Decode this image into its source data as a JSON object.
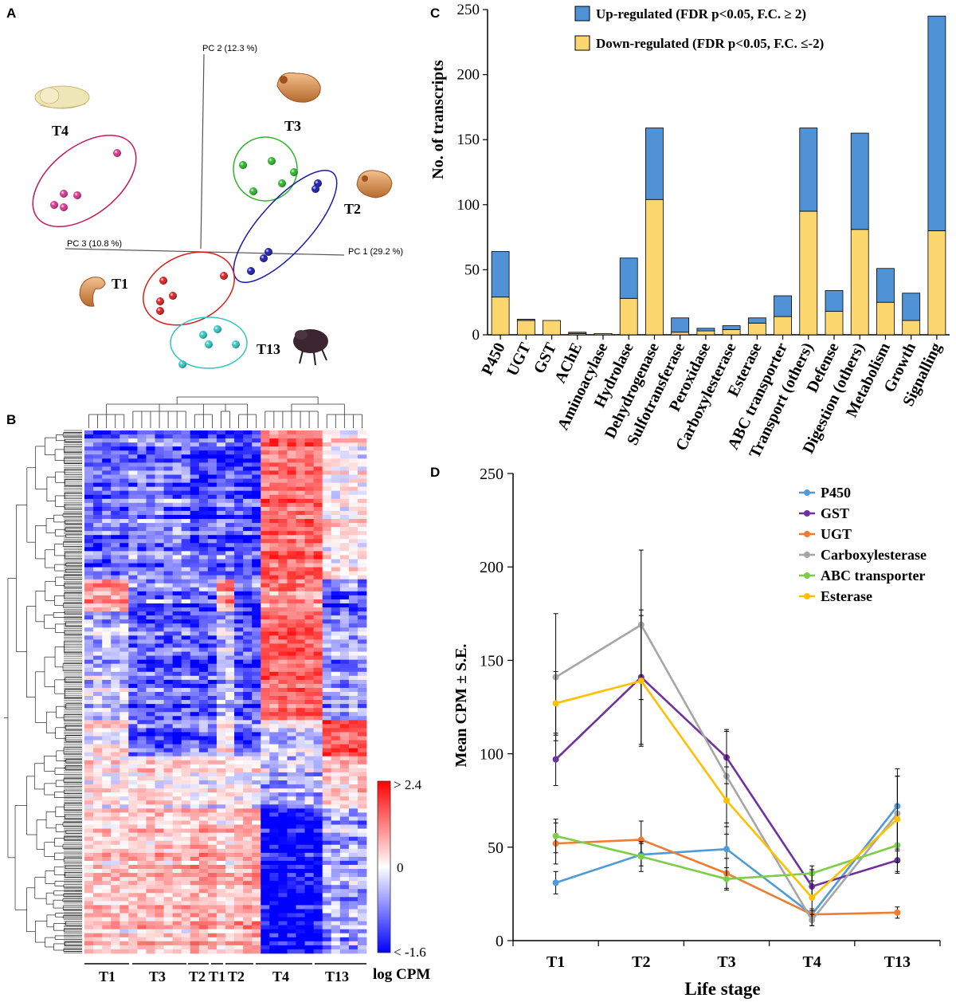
{
  "panels": {
    "A": {
      "letter": "A",
      "axes": {
        "pc1": "PC 1 (29.2 %)",
        "pc2": "PC 2 (12.3 %)",
        "pc3": "PC 3 (10.8 %)"
      },
      "groups": [
        {
          "label": "T4",
          "color": "#d6338f",
          "n": 5
        },
        {
          "label": "T3",
          "color": "#2bb52b",
          "n": 5
        },
        {
          "label": "T2",
          "color": "#1a1aa8",
          "n": 5
        },
        {
          "label": "T1",
          "color": "#d81e1e",
          "n": 5
        },
        {
          "label": "T13",
          "color": "#33c4c0",
          "n": 5
        }
      ]
    },
    "B": {
      "letter": "B",
      "colorbar": {
        "max_label": "> 2.4",
        "mid_label": "0",
        "min_label": "< -1.6",
        "title": "log CPM"
      },
      "column_groups": [
        "T1",
        "T3",
        "T2",
        "T1",
        "T2",
        "T4",
        "T13"
      ],
      "colors": {
        "high": "#ff0000",
        "mid": "#ffffff",
        "low": "#0000ff"
      }
    },
    "C": {
      "letter": "C",
      "legend": {
        "up": "Up-regulated (FDR p<0.05, F.C. ≥ 2)",
        "down": "Down-regulated (FDR p<0.05, F.C. ≤-2)"
      },
      "colors": {
        "up": "#4f93d6",
        "down": "#fcd66f"
      }
    },
    "D": {
      "letter": "D",
      "legend_colors": {
        "P450": "#4f9ad8",
        "GST": "#7030a0",
        "UGT": "#ed7d31",
        "Carboxylesterase": "#a6a6a6",
        "ABC transporter": "#7dce46",
        "Esterase": "#ffc000"
      }
    }
  },
  "chart_data": [
    {
      "type": "bar",
      "panel": "C",
      "title": "",
      "xlabel": "",
      "ylabel": "No. of transcripts",
      "ylim": [
        0,
        250
      ],
      "yticks": [
        0,
        50,
        100,
        150,
        200,
        250
      ],
      "categories": [
        "P450",
        "UGT",
        "GST",
        "AChE",
        "Aminoacylase",
        "Hydrolase",
        "Dehydrogenase",
        "Sulfotransferase",
        "Peroxidase",
        "Carboxylesterase",
        "Esterase",
        "ABC transporter",
        "Transport (others)",
        "Defense",
        "Digestion (others)",
        "Metabolism",
        "Growth",
        "Signalling"
      ],
      "series": [
        {
          "name": "Down-regulated (FDR p<0.05, F.C. ≤-2)",
          "values": [
            29,
            11,
            11,
            1,
            1,
            28,
            104,
            2,
            3,
            4,
            9,
            14,
            95,
            18,
            81,
            25,
            11,
            80
          ]
        },
        {
          "name": "Up-regulated (FDR p<0.05, F.C. ≥ 2)",
          "values": [
            35,
            1,
            0,
            1,
            0,
            31,
            55,
            11,
            2,
            3,
            4,
            16,
            64,
            16,
            74,
            26,
            21,
            165
          ]
        }
      ],
      "stacked": true,
      "legend": "top"
    },
    {
      "type": "line",
      "panel": "D",
      "title": "",
      "xlabel": "Life stage",
      "ylabel": "Mean CPM ± S.E.",
      "ylim": [
        0,
        250
      ],
      "yticks": [
        0,
        50,
        100,
        150,
        200,
        250
      ],
      "categories": [
        "T1",
        "T2",
        "T3",
        "T4",
        "T13"
      ],
      "series": [
        {
          "name": "P450",
          "values": [
            31,
            46,
            49,
            14,
            72
          ],
          "se": [
            6,
            6,
            12,
            3,
            20
          ]
        },
        {
          "name": "GST",
          "values": [
            97,
            141,
            98,
            29,
            43
          ],
          "se": [
            14,
            36,
            14,
            6,
            6
          ]
        },
        {
          "name": "UGT",
          "values": [
            52,
            54,
            36,
            14,
            15
          ],
          "se": [
            11,
            10,
            8,
            2,
            3
          ]
        },
        {
          "name": "Carboxylesterase",
          "values": [
            141,
            169,
            88,
            11,
            68
          ],
          "se": [
            34,
            40,
            25,
            3,
            20
          ]
        },
        {
          "name": "ABC transporter",
          "values": [
            56,
            45,
            33,
            36,
            51
          ],
          "se": [
            9,
            8,
            6,
            4,
            15
          ]
        },
        {
          "name": "Esterase",
          "values": [
            127,
            139,
            75,
            23,
            65
          ],
          "se": [
            17,
            35,
            18,
            15,
            23
          ]
        }
      ],
      "legend": "top-right"
    }
  ]
}
